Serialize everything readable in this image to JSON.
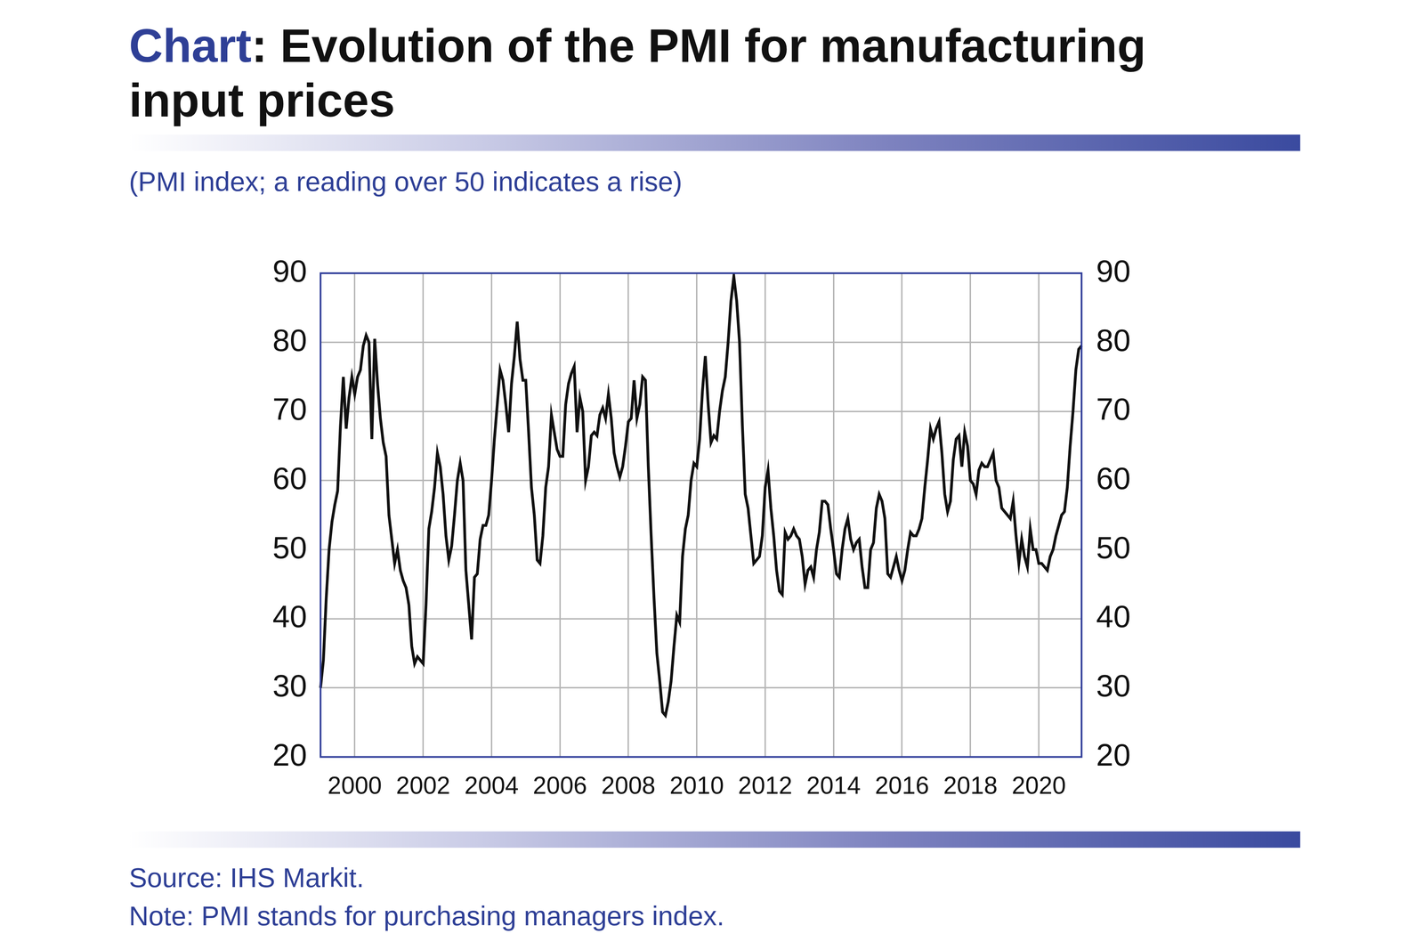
{
  "chart_data": {
    "type": "line",
    "title": "Chart: Evolution of the PMI for manufacturing input prices",
    "subtitle": "(PMI index; a reading over 50 indicates a rise)",
    "source": "Source: IHS Markit.",
    "note": "Note: PMI stands for purchasing managers index.",
    "categories": [
      null,
      null,
      null,
      null,
      null,
      null,
      null,
      null,
      null,
      null,
      null,
      null,
      "2000",
      null,
      null,
      null,
      null,
      null,
      null,
      null,
      null,
      null,
      null,
      null,
      null,
      null,
      null,
      null,
      null,
      null,
      null,
      null,
      null,
      null,
      null,
      null,
      "2002",
      null,
      null,
      null,
      null,
      null,
      null,
      null,
      null,
      null,
      null,
      null,
      null,
      null,
      null,
      null,
      null,
      null,
      null,
      null,
      null,
      null,
      null,
      null,
      "2004",
      null,
      null,
      null,
      null,
      null,
      null,
      null,
      null,
      null,
      null,
      null,
      null,
      null,
      null,
      null,
      null,
      null,
      null,
      null,
      null,
      null,
      null,
      null,
      "2006",
      null,
      null,
      null,
      null,
      null,
      null,
      null,
      null,
      null,
      null,
      null,
      null,
      null,
      null,
      null,
      null,
      null,
      null,
      null,
      null,
      null,
      null,
      null,
      "2008",
      null,
      null,
      null,
      null,
      null,
      null,
      null,
      null,
      null,
      null,
      null,
      null,
      null,
      null,
      null,
      null,
      null,
      null,
      null,
      null,
      null,
      null,
      null,
      "2010",
      null,
      null,
      null,
      null,
      null,
      null,
      null,
      null,
      null,
      null,
      null,
      null,
      null,
      null,
      null,
      null,
      null,
      null,
      null,
      null,
      null,
      null,
      null,
      "2012",
      null,
      null,
      null,
      null,
      null,
      null,
      null,
      null,
      null,
      null,
      null,
      null,
      null,
      null,
      null,
      null,
      null,
      null,
      null,
      null,
      null,
      null,
      null,
      "2014",
      null,
      null,
      null,
      null,
      null,
      null,
      null,
      null,
      null,
      null,
      null,
      null,
      null,
      null,
      null,
      null,
      null,
      null,
      null,
      null,
      null,
      null,
      null,
      "2016",
      null,
      null,
      null,
      null,
      null,
      null,
      null,
      null,
      null,
      null,
      null,
      null,
      null,
      null,
      null,
      null,
      null,
      null,
      null,
      null,
      null,
      null,
      null,
      "2018",
      null,
      null,
      null,
      null,
      null,
      null,
      null,
      null,
      null,
      null,
      null,
      null,
      null,
      null,
      null,
      null,
      null,
      null,
      null,
      null,
      null,
      null,
      null,
      "2020",
      null,
      null,
      null,
      null,
      null,
      null,
      null,
      null,
      null,
      null,
      null,
      null,
      null,
      null,
      null
    ],
    "values": [
      30,
      34,
      43,
      50,
      54,
      56.5,
      58.5,
      68,
      75,
      67.5,
      72,
      75,
      72.5,
      75,
      76,
      79.5,
      81,
      80,
      66,
      80.5,
      74,
      69,
      65.5,
      63.5,
      55,
      51.5,
      48,
      50,
      47,
      45.5,
      44.5,
      42,
      36,
      33.5,
      34.5,
      34,
      33.5,
      42,
      53,
      55.5,
      59,
      64,
      62,
      58,
      52,
      48.5,
      50.5,
      55,
      60,
      62.5,
      60,
      47,
      42,
      37,
      46,
      46.5,
      51.5,
      53.5,
      53.5,
      55,
      60,
      66,
      71,
      76,
      74.5,
      71,
      67,
      74,
      78,
      83,
      77.5,
      74.5,
      74.5,
      67,
      59,
      55,
      48.5,
      48,
      52,
      59,
      62,
      69.5,
      67,
      64.5,
      63.5,
      63.5,
      71,
      74,
      75.5,
      76.5,
      67,
      72,
      70,
      60,
      62,
      66.5,
      67,
      66.5,
      69.5,
      70.5,
      69,
      72.5,
      69,
      64,
      62,
      60.5,
      62,
      65,
      68.5,
      69,
      74.5,
      69,
      71,
      75,
      74.5,
      62,
      52,
      43,
      35,
      31,
      26.5,
      26,
      28,
      31,
      36,
      40.5,
      39.5,
      49,
      53,
      55,
      60,
      62.5,
      62,
      66,
      73,
      78,
      71,
      65.5,
      66.5,
      66,
      70,
      73,
      75,
      80,
      86,
      89.5,
      86,
      80,
      68,
      58,
      56,
      52,
      48,
      48.5,
      49,
      52,
      59,
      61.5,
      56,
      52,
      47,
      44,
      43.5,
      52.5,
      51.5,
      52,
      53,
      52,
      51.5,
      49,
      45,
      47,
      47.5,
      46,
      50,
      52.5,
      57,
      57,
      56.5,
      53,
      50,
      46.5,
      46,
      50,
      53,
      54.5,
      51.5,
      50,
      51,
      51.5,
      47.5,
      44.5,
      44.5,
      50,
      51,
      56,
      58,
      57,
      54.5,
      46.5,
      46,
      47.5,
      49,
      47,
      45.5,
      47,
      50,
      52.5,
      52,
      52,
      53,
      54.5,
      59,
      63,
      67.5,
      66,
      67.5,
      68.5,
      64,
      58,
      55.5,
      57,
      63,
      66,
      66.5,
      62,
      67,
      65,
      60,
      59.5,
      58,
      61.5,
      62.5,
      62,
      62,
      63,
      64,
      60,
      59,
      56,
      55.5,
      55,
      54.5,
      57,
      52,
      48,
      51.5,
      49,
      47.5,
      53,
      50,
      50,
      48,
      48,
      47.5,
      47,
      49,
      50,
      52,
      53.5,
      55,
      55.5,
      59,
      65,
      70,
      76,
      79,
      79.5
    ],
    "color": "#111111",
    "ylim": [
      20,
      90
    ],
    "yticks": [
      20,
      30,
      40,
      50,
      60,
      70,
      80,
      90
    ],
    "y2lim": [
      20,
      90
    ],
    "y2ticks": [
      20,
      30,
      40,
      50,
      60,
      70,
      80,
      90
    ],
    "grid": true
  }
}
